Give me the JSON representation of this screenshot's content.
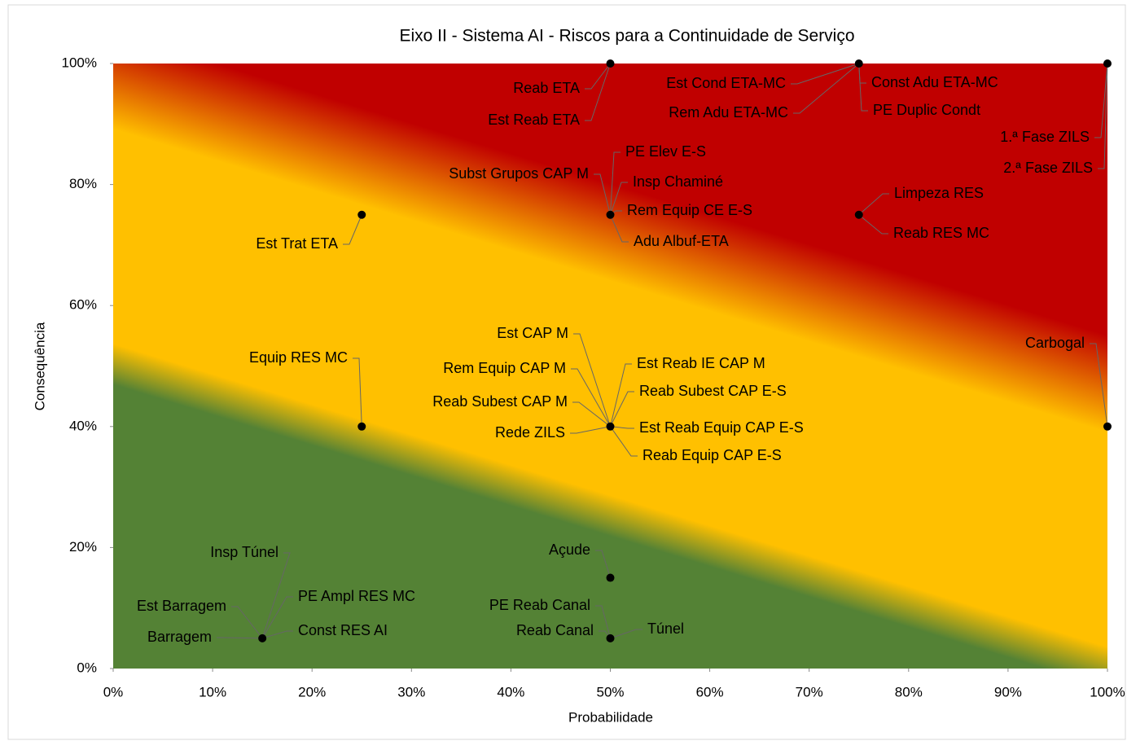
{
  "chart_data": {
    "type": "scatter",
    "title": "Eixo II - Sistema AI - Riscos para a Continuidade de Serviço",
    "x_label": "Probabilidade",
    "y_label": "Consequência",
    "x": [
      50,
      75,
      100,
      50,
      75,
      25,
      25,
      50,
      100,
      50,
      50,
      15
    ],
    "values": [
      100,
      100,
      100,
      75,
      75,
      75,
      40,
      40,
      40,
      15,
      5,
      5
    ],
    "point_labels": [
      [
        "Reab ETA",
        "Est Reab ETA"
      ],
      [
        "Est Cond ETA-MC",
        "Rem Adu ETA-MC",
        "Const Adu ETA-MC",
        "PE Duplic Condt"
      ],
      [
        "1.ª Fase ZILS",
        "2.ª Fase ZILS"
      ],
      [
        "PE Elev E-S",
        "Subst Grupos CAP M",
        "Insp Chaminé",
        "Rem Equip CE E-S",
        "Adu Albuf-ETA"
      ],
      [
        "Limpeza RES",
        "Reab RES MC"
      ],
      [
        "Est Trat ETA"
      ],
      [
        "Equip RES MC"
      ],
      [
        "Est CAP M",
        "Rem Equip CAP M",
        "Reab Subest CAP M",
        "Rede ZILS",
        "Est Reab IE CAP M",
        "Reab Subest CAP E-S",
        "Est Reab Equip CAP E-S",
        "Reab Equip CAP E-S"
      ],
      [
        "Carbogal"
      ],
      [
        "Açude"
      ],
      [
        "PE Reab Canal",
        "Reab Canal",
        "Túnel"
      ],
      [
        "Insp Túnel",
        "Est Barragem",
        "Barragem",
        "PE Ampl RES MC",
        "Const RES AI"
      ]
    ],
    "color": "#000000",
    "xlim": [
      0,
      100
    ],
    "ylim": [
      0,
      100
    ],
    "xticks": [
      {
        "value": 0,
        "label": "0%"
      },
      {
        "value": 10,
        "label": "10%"
      },
      {
        "value": 20,
        "label": "20%"
      },
      {
        "value": 30,
        "label": "30%"
      },
      {
        "value": 40,
        "label": "40%"
      },
      {
        "value": 50,
        "label": "50%"
      },
      {
        "value": 60,
        "label": "60%"
      },
      {
        "value": 70,
        "label": "70%"
      },
      {
        "value": 80,
        "label": "80%"
      },
      {
        "value": 90,
        "label": "90%"
      },
      {
        "value": 100,
        "label": "100%"
      }
    ],
    "yticks": [
      {
        "value": 0,
        "label": "0%"
      },
      {
        "value": 20,
        "label": "20%"
      },
      {
        "value": 40,
        "label": "40%"
      },
      {
        "value": 60,
        "label": "60%"
      },
      {
        "value": 80,
        "label": "80%"
      },
      {
        "value": 100,
        "label": "100%"
      }
    ]
  }
}
